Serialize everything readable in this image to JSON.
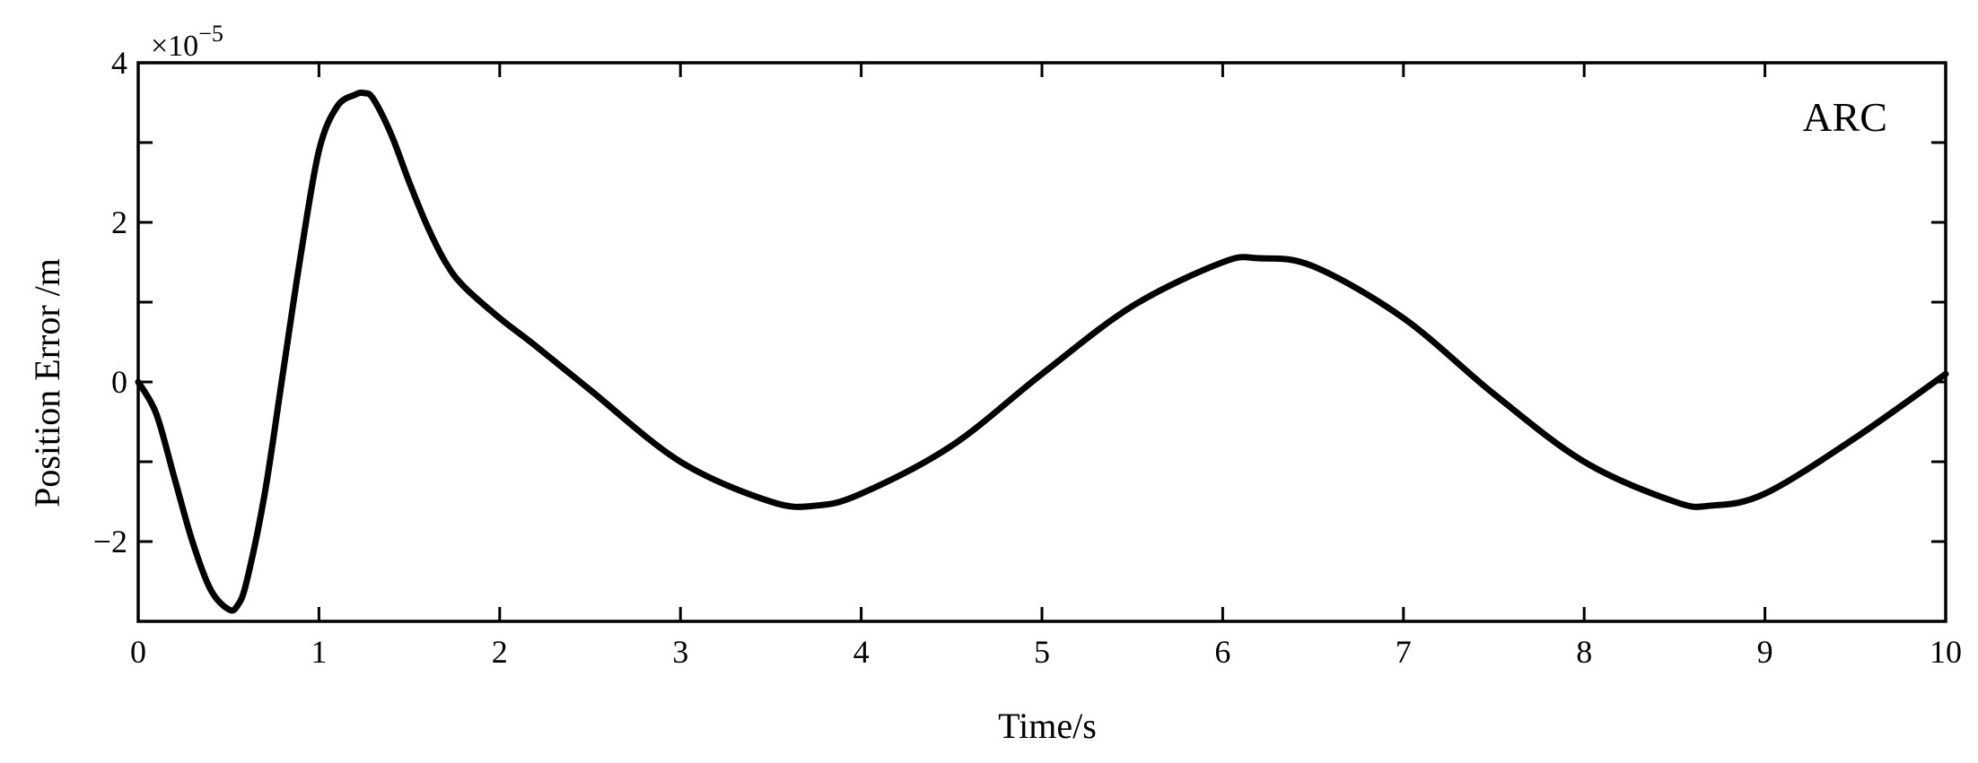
{
  "chart_data": {
    "type": "line",
    "title": "",
    "xlabel": "Time/s",
    "ylabel": "Position Error /m",
    "y_exponent_label": "×10",
    "y_exponent_power": "−5",
    "annotation": "ARC",
    "xlim": [
      0,
      10
    ],
    "ylim": [
      -3,
      4
    ],
    "x_ticks": [
      0,
      1,
      2,
      3,
      4,
      5,
      6,
      7,
      8,
      9,
      10
    ],
    "x_tick_labels": [
      "0",
      "1",
      "2",
      "3",
      "4",
      "5",
      "6",
      "7",
      "8",
      "9",
      "10"
    ],
    "y_ticks": [
      -2,
      0,
      2,
      4
    ],
    "y_tick_labels": [
      "−2",
      "0",
      "2",
      "4"
    ],
    "y_minor_ticks": [
      -3,
      -1,
      1,
      3
    ],
    "line_color": "#000000",
    "grid": false,
    "series": [
      {
        "x": [
          0,
          0.1,
          0.2,
          0.3,
          0.4,
          0.5,
          0.55,
          0.6,
          0.7,
          0.8,
          0.9,
          1.0,
          1.1,
          1.2,
          1.25,
          1.3,
          1.4,
          1.5,
          1.6,
          1.7,
          1.8,
          2.0,
          2.2,
          2.5,
          3.0,
          3.5,
          3.75,
          4.0,
          4.5,
          5.0,
          5.5,
          6.0,
          6.2,
          6.5,
          7.0,
          7.5,
          8.0,
          8.5,
          8.7,
          9.0,
          9.5,
          10.0
        ],
        "y": [
          0,
          -0.4,
          -1.2,
          -2.0,
          -2.6,
          -2.85,
          -2.8,
          -2.5,
          -1.4,
          0.1,
          1.6,
          2.9,
          3.45,
          3.6,
          3.62,
          3.55,
          3.1,
          2.5,
          1.95,
          1.5,
          1.2,
          0.8,
          0.45,
          -0.1,
          -1.0,
          -1.5,
          -1.55,
          -1.4,
          -0.8,
          0.1,
          0.95,
          1.5,
          1.55,
          1.45,
          0.8,
          -0.15,
          -1.0,
          -1.5,
          -1.55,
          -1.4,
          -0.7,
          0.1
        ]
      }
    ]
  }
}
